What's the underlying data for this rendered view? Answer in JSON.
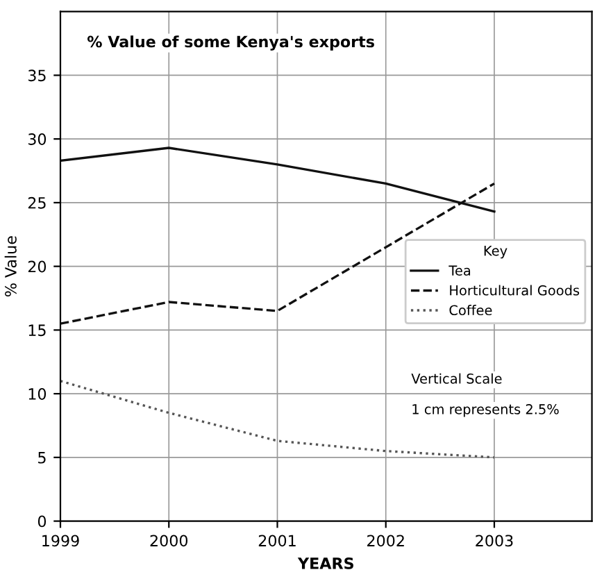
{
  "chart_data": {
    "type": "line",
    "title": "% Value of some Kenya's exports",
    "xlabel": "YEARS",
    "ylabel": "% Value",
    "x": [
      1999,
      2000,
      2001,
      2002,
      2003
    ],
    "series": [
      {
        "name": "Tea",
        "color": "#111111",
        "values": [
          28.3,
          29.3,
          28,
          26.5,
          24.3
        ],
        "line_style": "solid"
      },
      {
        "name": "Horticultural Goods",
        "color": "#111111",
        "values": [
          15.5,
          17.2,
          16.5,
          21.5,
          26.5
        ],
        "line_style": "dashed"
      },
      {
        "name": "Coffee",
        "color": "#555555",
        "values": [
          11,
          8.5,
          6.3,
          5.5,
          5
        ],
        "line_style": "dotted"
      }
    ],
    "legend_title": "Key",
    "legend": "right",
    "annotations": [
      "Vertical Scale",
      "1 cm represents 2.5%"
    ],
    "xlim": [
      1999,
      2003.9
    ],
    "ylim": [
      0,
      40
    ],
    "xticks": [
      1999,
      2000,
      2001,
      2002,
      2003
    ],
    "yticks": [
      0,
      5,
      10,
      15,
      20,
      25,
      30,
      35
    ],
    "grid": true,
    "marker": "none"
  }
}
